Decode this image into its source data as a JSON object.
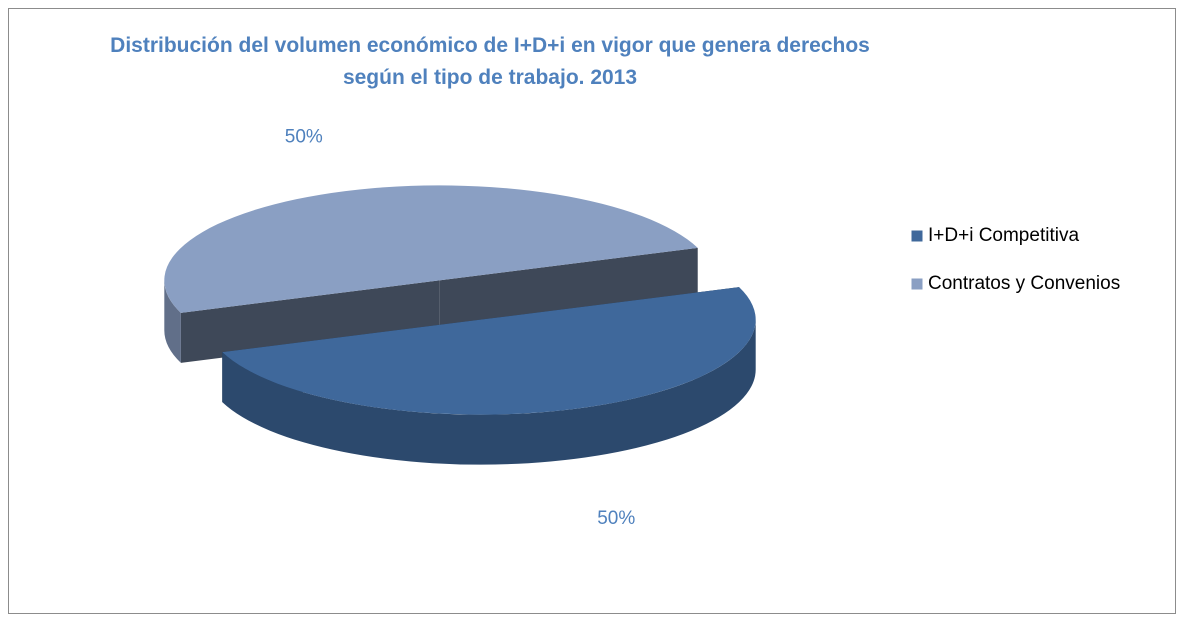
{
  "chart_data": {
    "type": "pie",
    "title": "Distribución del volumen económico de I+D+i en vigor que genera derechos según el tipo de trabajo. 2013",
    "categories": [
      "I+D+i Competitiva",
      "Contratos y Convenios"
    ],
    "values": [
      50,
      50
    ],
    "value_labels": [
      "50%",
      "50%"
    ],
    "colors": [
      "#3f689b",
      "#8a9fc3"
    ],
    "legend": "right"
  }
}
